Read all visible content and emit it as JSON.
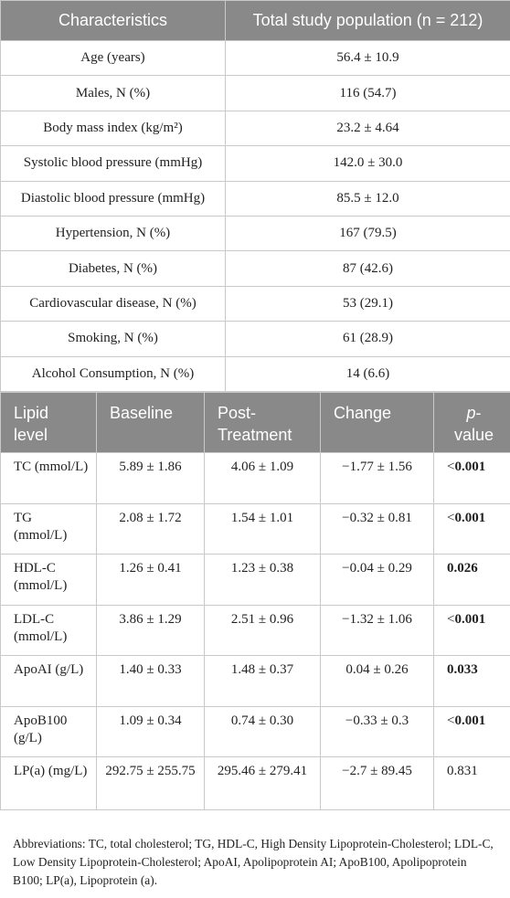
{
  "table1": {
    "headers": [
      "Characteristics",
      "Total study population (n = 212)"
    ],
    "rows": [
      {
        "label": "Age (years)",
        "value": "56.4 ± 10.9"
      },
      {
        "label": "Males, N (%)",
        "value": "116 (54.7)"
      },
      {
        "label": "Body mass index (kg/m²)",
        "value": "23.2 ± 4.64"
      },
      {
        "label": "Systolic blood pressure (mmHg)",
        "value": "142.0 ± 30.0"
      },
      {
        "label": "Diastolic blood pressure (mmHg)",
        "value": "85.5 ± 12.0"
      },
      {
        "label": "Hypertension, N (%)",
        "value": "167 (79.5)"
      },
      {
        "label": "Diabetes, N (%)",
        "value": "87 (42.6)"
      },
      {
        "label": "Cardiovascular disease, N (%)",
        "value": "53 (29.1)"
      },
      {
        "label": "Smoking, N (%)",
        "value": "61 (28.9)"
      },
      {
        "label": "Alcohol Consumption, N (%)",
        "value": "14 (6.6)"
      }
    ]
  },
  "table2": {
    "headers": {
      "lipid": "Lipid level",
      "baseline": "Baseline",
      "post": "Post-Treatment",
      "change": "Change",
      "p_italic": "p",
      "p_rest": "-value"
    },
    "rows": [
      {
        "lipid": "TC (mmol/L)",
        "baseline": "5.89 ± 1.86",
        "post": "4.06 ± 1.09",
        "change": "−1.77 ± 1.56",
        "p_prefix": "<",
        "p_value": "0.001",
        "significant": true
      },
      {
        "lipid": "TG (mmol/L)",
        "baseline": "2.08 ± 1.72",
        "post": "1.54 ± 1.01",
        "change": "−0.32 ± 0.81",
        "p_prefix": "<",
        "p_value": "0.001",
        "significant": true
      },
      {
        "lipid": "HDL-C (mmol/L)",
        "baseline": "1.26 ± 0.41",
        "post": "1.23 ± 0.38",
        "change": "−0.04 ± 0.29",
        "p_prefix": "",
        "p_value": "0.026",
        "significant": true
      },
      {
        "lipid": "LDL-C (mmol/L)",
        "baseline": "3.86 ± 1.29",
        "post": "2.51 ± 0.96",
        "change": "−1.32 ± 1.06",
        "p_prefix": "<",
        "p_value": "0.001",
        "significant": true
      },
      {
        "lipid": "ApoAI (g/L)",
        "baseline": "1.40 ± 0.33",
        "post": "1.48 ± 0.37",
        "change": "0.04 ± 0.26",
        "p_prefix": "",
        "p_value": "0.033",
        "significant": true
      },
      {
        "lipid": "ApoB100 (g/L)",
        "baseline": "1.09 ± 0.34",
        "post": "0.74 ± 0.30",
        "change": "−0.33 ± 0.3",
        "p_prefix": "<",
        "p_value": "0.001",
        "significant": true
      },
      {
        "lipid": "LP(a) (mg/L)",
        "baseline": "292.75 ± 255.75",
        "post": "295.46 ± 279.41",
        "change": "−2.7 ± 89.45",
        "p_prefix": "",
        "p_value": "0.831",
        "significant": false
      }
    ]
  },
  "footnote": "Abbreviations: TC, total cholesterol; TG, HDL-C, High Density Lipoprotein-Cholesterol; LDL-C, Low Density Lipoprotein-Cholesterol; ApoAI, Apolipoprotein AI; ApoB100, Apolipoprotein B100; LP(a), Lipoprotein (a)."
}
